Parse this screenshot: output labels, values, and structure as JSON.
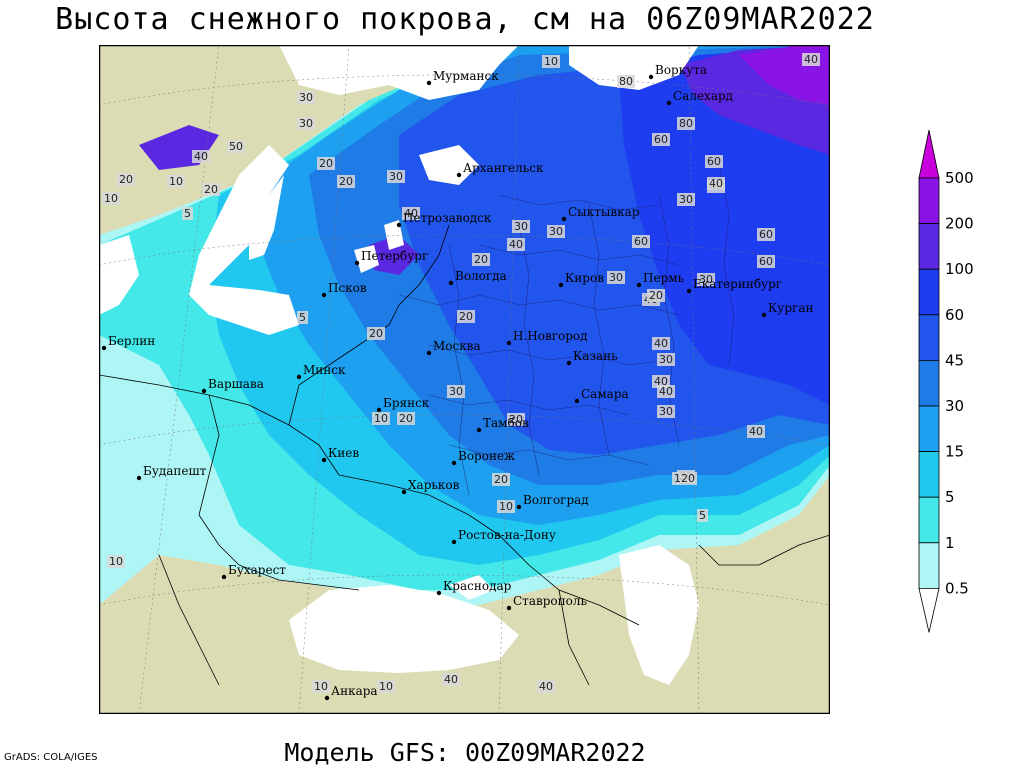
{
  "title": "Высота снежного покрова, см на 06Z09MAR2022",
  "footer": "Модель GFS: 00Z09MAR2022",
  "credit": "GrADS: COLA/IGES",
  "colors": {
    "land": "#dcdcb4",
    "sea": "#ffffff",
    "c0_5": "#aef5f5",
    "c1": "#44e8e8",
    "c5": "#20c8f0",
    "c15": "#1ea0f0",
    "c30": "#1f7be6",
    "c45": "#2255ec",
    "c60": "#1e3cf0",
    "c100": "#5a28e0",
    "c200": "#8a14e6",
    "c500": "#c800dc"
  },
  "legend": {
    "labels": [
      "500",
      "200",
      "100",
      "60",
      "45",
      "30",
      "15",
      "5",
      "1",
      "0.5"
    ]
  },
  "cities": [
    {
      "name": "Мурманск"
    },
    {
      "name": "Воркута"
    },
    {
      "name": "Салехард"
    },
    {
      "name": "Архангельск"
    },
    {
      "name": "Сыктывкар"
    },
    {
      "name": "Петрозаводск"
    },
    {
      "name": "Петербург"
    },
    {
      "name": "Вологда"
    },
    {
      "name": "Киров"
    },
    {
      "name": "Пермь"
    },
    {
      "name": "Екатеринбург"
    },
    {
      "name": "Курган"
    },
    {
      "name": "Псков"
    },
    {
      "name": "Н.Новгород"
    },
    {
      "name": "Москва"
    },
    {
      "name": "Казань"
    },
    {
      "name": "Берлин"
    },
    {
      "name": "Минск"
    },
    {
      "name": "Варшава"
    },
    {
      "name": "Самара"
    },
    {
      "name": "Брянск"
    },
    {
      "name": "Тамбов"
    },
    {
      "name": "Воронеж"
    },
    {
      "name": "Киев"
    },
    {
      "name": "Будапешт"
    },
    {
      "name": "Харьков"
    },
    {
      "name": "Волгоград"
    },
    {
      "name": "Ростов-на-Дону"
    },
    {
      "name": "Бухарест"
    },
    {
      "name": "Краснодар"
    },
    {
      "name": "Ставрополь"
    },
    {
      "name": "Анкара"
    }
  ],
  "contour_labels": [
    "10",
    "40",
    "80",
    "80",
    "60",
    "30",
    "60",
    "40",
    "60",
    "50",
    "40",
    "20",
    "10",
    "20",
    "5",
    "30",
    "20",
    "20",
    "30",
    "10",
    "40",
    "30",
    "40",
    "30",
    "60",
    "40",
    "30",
    "60",
    "20",
    "30",
    "40",
    "20",
    "30",
    "5",
    "20",
    "20",
    "40",
    "30",
    "40",
    "40",
    "20",
    "30",
    "40",
    "10",
    "20",
    "30",
    "20",
    "10",
    "20",
    "120",
    "5",
    "10",
    "10",
    "10",
    "40",
    "40"
  ]
}
